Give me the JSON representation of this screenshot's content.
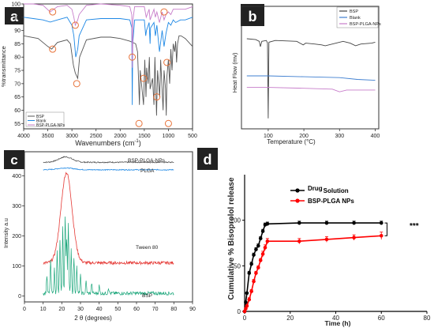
{
  "chart_data": [
    {
      "panel_label": "a",
      "type": "line",
      "xlabel": "Wavenumbers (cm",
      "xlabel_sup": "-1",
      "xlabel_close": ")",
      "ylabel": "%transmittance",
      "x_ticks": [
        "4000",
        "3500",
        "3000",
        "2500",
        "2000",
        "1500",
        "1000",
        "500"
      ],
      "y_ticks": [
        "100",
        "95",
        "90",
        "85",
        "80",
        "75",
        "70",
        "65",
        "60",
        "55"
      ],
      "xlim": [
        4000,
        500
      ],
      "ylim": [
        53,
        100
      ],
      "legend_position": "bottom-left",
      "series": [
        {
          "name": "BSP",
          "color": "#555555",
          "points": [
            [
              4000,
              88
            ],
            [
              3700,
              87
            ],
            [
              3500,
              84
            ],
            [
              3420,
              83
            ],
            [
              3300,
              85.5
            ],
            [
              3100,
              86.5
            ],
            [
              3030,
              85
            ],
            [
              2970,
              77
            ],
            [
              2930,
              74
            ],
            [
              2880,
              72
            ],
            [
              2840,
              80
            ],
            [
              2700,
              86.5
            ],
            [
              2400,
              87.5
            ],
            [
              2200,
              87.5
            ],
            [
              2000,
              87
            ],
            [
              1800,
              86
            ],
            [
              1680,
              85
            ],
            [
              1640,
              82
            ],
            [
              1613,
              69
            ],
            [
              1600,
              62
            ],
            [
              1585,
              75
            ],
            [
              1515,
              62
            ],
            [
              1490,
              79
            ],
            [
              1465,
              65
            ],
            [
              1450,
              76
            ],
            [
              1420,
              70
            ],
            [
              1395,
              80
            ],
            [
              1380,
              68
            ],
            [
              1330,
              72
            ],
            [
              1300,
              62
            ],
            [
              1280,
              80
            ],
            [
              1245,
              58
            ],
            [
              1225,
              75
            ],
            [
              1180,
              65
            ],
            [
              1160,
              79
            ],
            [
              1110,
              60
            ],
            [
              1090,
              75
            ],
            [
              1060,
              68
            ],
            [
              1045,
              58
            ],
            [
              1030,
              73
            ],
            [
              1000,
              79
            ],
            [
              975,
              70
            ],
            [
              950,
              83
            ],
            [
              925,
              75
            ],
            [
              900,
              85
            ],
            [
              870,
              82
            ],
            [
              850,
              86
            ],
            [
              830,
              78
            ],
            [
              810,
              85
            ],
            [
              780,
              88
            ],
            [
              740,
              88
            ],
            [
              650,
              87
            ],
            [
              500,
              84
            ]
          ]
        },
        {
          "name": "Blank",
          "color": "#1e88e5",
          "points": [
            [
              4000,
              95
            ],
            [
              3800,
              94.5
            ],
            [
              3600,
              94
            ],
            [
              3450,
              93.2
            ],
            [
              3300,
              94
            ],
            [
              3100,
              95
            ],
            [
              3000,
              92
            ],
            [
              2960,
              88
            ],
            [
              2920,
              80
            ],
            [
              2880,
              83
            ],
            [
              2850,
              88
            ],
            [
              2700,
              94
            ],
            [
              2400,
              94.5
            ],
            [
              2000,
              94.5
            ],
            [
              1800,
              94
            ],
            [
              1760,
              91
            ],
            [
              1750,
              62
            ],
            [
              1740,
              85
            ],
            [
              1700,
              94
            ],
            [
              1500,
              94
            ],
            [
              1470,
              88
            ],
            [
              1455,
              90
            ],
            [
              1400,
              93
            ],
            [
              1380,
              85
            ],
            [
              1370,
              91
            ],
            [
              1300,
              93
            ],
            [
              1270,
              88
            ],
            [
              1240,
              92
            ],
            [
              1185,
              82
            ],
            [
              1130,
              90
            ],
            [
              1090,
              84
            ],
            [
              1050,
              89
            ],
            [
              1000,
              93
            ],
            [
              950,
              92
            ],
            [
              900,
              94
            ],
            [
              850,
              93
            ],
            [
              750,
              94
            ],
            [
              650,
              94
            ],
            [
              500,
              95
            ]
          ]
        },
        {
          "name": "BSP-PLGA-NPs",
          "color": "#c77dca",
          "points": [
            [
              4000,
              100
            ],
            [
              3800,
              100
            ],
            [
              3600,
              99.5
            ],
            [
              3450,
              97
            ],
            [
              3300,
              99
            ],
            [
              3100,
              99.5
            ],
            [
              3000,
              98
            ],
            [
              2960,
              95
            ],
            [
              2930,
              92
            ],
            [
              2880,
              94
            ],
            [
              2850,
              96
            ],
            [
              2700,
              99.5
            ],
            [
              2400,
              100
            ],
            [
              2000,
              99.5
            ],
            [
              1800,
              99
            ],
            [
              1760,
              96
            ],
            [
              1748,
              76
            ],
            [
              1735,
              94
            ],
            [
              1700,
              99
            ],
            [
              1500,
              99
            ],
            [
              1460,
              95
            ],
            [
              1400,
              98
            ],
            [
              1380,
              94
            ],
            [
              1300,
              98
            ],
            [
              1270,
              95
            ],
            [
              1240,
              97
            ],
            [
              1185,
              93
            ],
            [
              1130,
              97
            ],
            [
              1090,
              94
            ],
            [
              1050,
              96
            ],
            [
              1000,
              97
            ],
            [
              950,
              96
            ],
            [
              900,
              98
            ],
            [
              800,
              98
            ],
            [
              650,
              98
            ],
            [
              500,
              99
            ]
          ]
        }
      ],
      "circle_markers": [
        [
          3400,
          97
        ],
        [
          3400,
          83
        ],
        [
          2930,
          92
        ],
        [
          2900,
          70
        ],
        [
          1750,
          80
        ],
        [
          1610,
          55
        ],
        [
          1515,
          72
        ],
        [
          1240,
          65
        ],
        [
          1090,
          97
        ],
        [
          1030,
          78
        ],
        [
          1000,
          55
        ]
      ]
    },
    {
      "panel_label": "b",
      "type": "line",
      "xlabel": "Temperature (°C)",
      "ylabel": "Heat Flow (mv)",
      "x_ticks": [
        "100",
        "200",
        "300",
        "400"
      ],
      "x_tick_values": [
        100,
        200,
        300,
        400
      ],
      "xlim": [
        25,
        410
      ],
      "y_range": [
        0,
        10
      ],
      "legend_position": "top-right",
      "series": [
        {
          "name": "BSP",
          "color": "#444444",
          "points": [
            [
              40,
              9.2
            ],
            [
              65,
              9.1
            ],
            [
              75,
              8.9
            ],
            [
              78,
              8.3
            ],
            [
              82,
              8.9
            ],
            [
              95,
              9.0
            ],
            [
              98,
              8.7
            ],
            [
              100,
              0.2
            ],
            [
              102,
              8.8
            ],
            [
              120,
              9.0
            ],
            [
              180,
              8.9
            ],
            [
              198,
              8.5
            ],
            [
              205,
              8.7
            ],
            [
              230,
              8.6
            ],
            [
              250,
              8.5
            ],
            [
              260,
              8.4
            ],
            [
              290,
              8.7
            ],
            [
              310,
              8.9
            ],
            [
              330,
              8.7
            ],
            [
              345,
              8.4
            ],
            [
              360,
              8.6
            ],
            [
              390,
              8.7
            ],
            [
              400,
              8.8
            ]
          ]
        },
        {
          "name": "Blank",
          "color": "#3f7fd0",
          "points": [
            [
              40,
              5.0
            ],
            [
              100,
              5.0
            ],
            [
              200,
              4.9
            ],
            [
              300,
              4.8
            ],
            [
              350,
              4.6
            ],
            [
              400,
              4.5
            ]
          ]
        },
        {
          "name": "BSP-PLGA-NPs",
          "color": "#c77dca",
          "points": [
            [
              40,
              3.7
            ],
            [
              100,
              3.7
            ],
            [
              200,
              3.6
            ],
            [
              280,
              3.5
            ],
            [
              300,
              3.2
            ],
            [
              320,
              3.4
            ],
            [
              400,
              3.4
            ]
          ]
        }
      ]
    },
    {
      "panel_label": "c",
      "type": "line",
      "xlabel": "2 θ (degrees)",
      "ylabel": "Intensity a.u",
      "x_ticks": [
        "0",
        "10",
        "20",
        "30",
        "40",
        "50",
        "60",
        "70",
        "80",
        "90"
      ],
      "y_ticks": [
        "0",
        "100",
        "200",
        "300",
        "400"
      ],
      "xlim": [
        0,
        90
      ],
      "ylim": [
        -20,
        480
      ],
      "series": [
        {
          "name": "BSP-PLGA-NPs",
          "color": "#444444",
          "offset": 445
        },
        {
          "name": "PLGA",
          "color": "#1e88e5",
          "offset": 420
        },
        {
          "name": "Tween 80",
          "color": "#e53935",
          "offset": 110
        },
        {
          "name": "BSP",
          "color": "#1aa67a",
          "offset": 0
        }
      ]
    },
    {
      "panel_label": "d",
      "type": "line",
      "xlabel": "Time (h)",
      "ylabel": "Cumulative % Bisoprolol release",
      "x_ticks": [
        "0",
        "20",
        "40",
        "60",
        "80"
      ],
      "y_ticks": [
        "0",
        "50",
        "100"
      ],
      "xlim": [
        0,
        80
      ],
      "ylim": [
        0,
        150
      ],
      "legend_position": "top",
      "significance": "***",
      "series": [
        {
          "name": "Drug Solution",
          "name_parts": [
            "Drug",
            "Solution"
          ],
          "color": "#000000",
          "x": [
            0,
            0.5,
            1,
            2,
            3,
            4,
            5,
            6,
            7,
            8,
            9,
            10,
            24,
            36,
            48,
            60
          ],
          "y": [
            0,
            10,
            20,
            42,
            52,
            62,
            68,
            72,
            80,
            88,
            95,
            96,
            97,
            97,
            97,
            97
          ],
          "err": [
            0,
            1,
            1,
            2,
            2,
            2,
            2,
            2,
            2,
            2,
            2,
            2,
            2,
            2,
            2,
            2
          ]
        },
        {
          "name": "BSP-PLGA NPs",
          "color": "#ff0000",
          "x": [
            0,
            0.5,
            1,
            2,
            3,
            4,
            5,
            6,
            7,
            8,
            9,
            10,
            24,
            36,
            48,
            60
          ],
          "y": [
            0,
            3,
            6,
            13,
            22,
            33,
            42,
            48,
            56,
            63,
            70,
            77,
            77,
            79,
            81,
            83
          ],
          "err": [
            0,
            1,
            1,
            2,
            2,
            2,
            2,
            2,
            2,
            3,
            3,
            3,
            3,
            3,
            3,
            4
          ]
        }
      ]
    }
  ]
}
